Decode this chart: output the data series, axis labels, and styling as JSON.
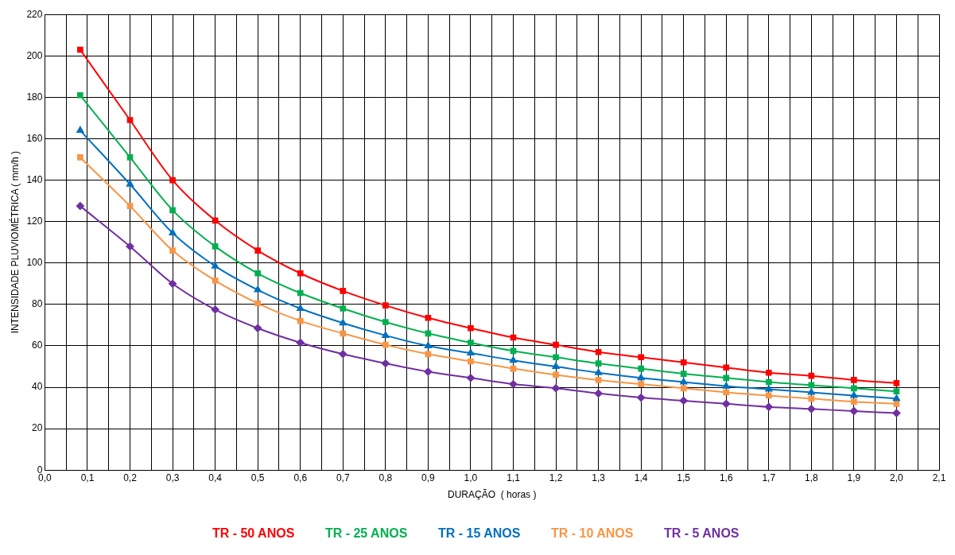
{
  "chart_data": {
    "type": "line",
    "xlabel": "DURAÇÃO  ( horas )",
    "ylabel": "INTENSIDADE PLUVIOMÉTRICA ( mm/h )",
    "x": [
      0.083,
      0.2,
      0.3,
      0.4,
      0.5,
      0.6,
      0.7,
      0.8,
      0.9,
      1.0,
      1.1,
      1.2,
      1.3,
      1.4,
      1.5,
      1.6,
      1.7,
      1.8,
      1.9,
      2.0
    ],
    "series": [
      {
        "name": "TR - 50 ANOS",
        "color": "#ff0000",
        "marker": "square",
        "values": [
          203,
          169,
          140,
          120.5,
          106,
          95,
          86.5,
          79.5,
          73.5,
          68.5,
          64,
          60.5,
          57,
          54.5,
          52,
          49.5,
          47,
          45.5,
          43.5,
          42
        ]
      },
      {
        "name": "TR - 25 ANOS",
        "color": "#00b050",
        "marker": "square",
        "values": [
          181,
          151,
          125.5,
          108,
          95,
          85.5,
          78,
          71.5,
          66,
          61.5,
          57.5,
          54.5,
          51.5,
          49,
          46.5,
          44.5,
          42.5,
          41,
          39.5,
          38
        ]
      },
      {
        "name": "TR - 15 ANOS",
        "color": "#0070c0",
        "marker": "triangle",
        "values": [
          164,
          138,
          114.5,
          98.5,
          87,
          78,
          71,
          65,
          60,
          56.5,
          53,
          50,
          47,
          44.5,
          42.5,
          40.5,
          39,
          37.5,
          36,
          34.5
        ]
      },
      {
        "name": "TR - 10 ANOS",
        "color": "#f79646",
        "marker": "square",
        "values": [
          151,
          127.5,
          106,
          91.5,
          80.5,
          72,
          66,
          60.5,
          56,
          52.5,
          49,
          46,
          43.5,
          41.5,
          39.5,
          37.5,
          36,
          34.5,
          33,
          32
        ]
      },
      {
        "name": "TR - 5 ANOS",
        "color": "#7030a0",
        "marker": "diamond",
        "values": [
          127.5,
          108,
          90,
          77.5,
          68.5,
          61.5,
          56,
          51.5,
          47.5,
          44.5,
          41.5,
          39.5,
          37,
          35,
          33.5,
          32,
          30.5,
          29.5,
          28.5,
          27.5
        ]
      }
    ],
    "xlim": [
      0,
      2.1
    ],
    "xticks": [
      {
        "value": 0,
        "label": "0,0"
      },
      {
        "value": 0.05,
        "label": null
      },
      {
        "value": 0.1,
        "label": "0,1"
      },
      {
        "value": 0.15,
        "label": null
      },
      {
        "value": 0.2,
        "label": "0,2"
      },
      {
        "value": 0.25,
        "label": null
      },
      {
        "value": 0.3,
        "label": "0,3"
      },
      {
        "value": 0.35,
        "label": null
      },
      {
        "value": 0.4,
        "label": "0,4"
      },
      {
        "value": 0.45,
        "label": null
      },
      {
        "value": 0.5,
        "label": "0,5"
      },
      {
        "value": 0.55,
        "label": null
      },
      {
        "value": 0.6,
        "label": "0,6"
      },
      {
        "value": 0.65,
        "label": null
      },
      {
        "value": 0.7,
        "label": "0,7"
      },
      {
        "value": 0.75,
        "label": null
      },
      {
        "value": 0.8,
        "label": "0,8"
      },
      {
        "value": 0.85,
        "label": null
      },
      {
        "value": 0.9,
        "label": "0,9"
      },
      {
        "value": 0.95,
        "label": null
      },
      {
        "value": 1.0,
        "label": "1,0"
      },
      {
        "value": 1.05,
        "label": null
      },
      {
        "value": 1.1,
        "label": "1,1"
      },
      {
        "value": 1.15,
        "label": null
      },
      {
        "value": 1.2,
        "label": "1,2"
      },
      {
        "value": 1.25,
        "label": null
      },
      {
        "value": 1.3,
        "label": "1,3"
      },
      {
        "value": 1.35,
        "label": null
      },
      {
        "value": 1.4,
        "label": "1,4"
      },
      {
        "value": 1.45,
        "label": null
      },
      {
        "value": 1.5,
        "label": "1,5"
      },
      {
        "value": 1.55,
        "label": null
      },
      {
        "value": 1.6,
        "label": "1,6"
      },
      {
        "value": 1.65,
        "label": null
      },
      {
        "value": 1.7,
        "label": "1,7"
      },
      {
        "value": 1.75,
        "label": null
      },
      {
        "value": 1.8,
        "label": "1,8"
      },
      {
        "value": 1.85,
        "label": null
      },
      {
        "value": 1.9,
        "label": "1,9"
      },
      {
        "value": 1.95,
        "label": null
      },
      {
        "value": 2.0,
        "label": "2,0"
      },
      {
        "value": 2.05,
        "label": null
      },
      {
        "value": 2.1,
        "label": "2,1"
      }
    ],
    "ylim": [
      0,
      220
    ],
    "yticks": [
      0,
      20,
      40,
      60,
      80,
      100,
      120,
      140,
      160,
      180,
      200,
      220
    ],
    "grid": true,
    "legend": "bottom"
  }
}
